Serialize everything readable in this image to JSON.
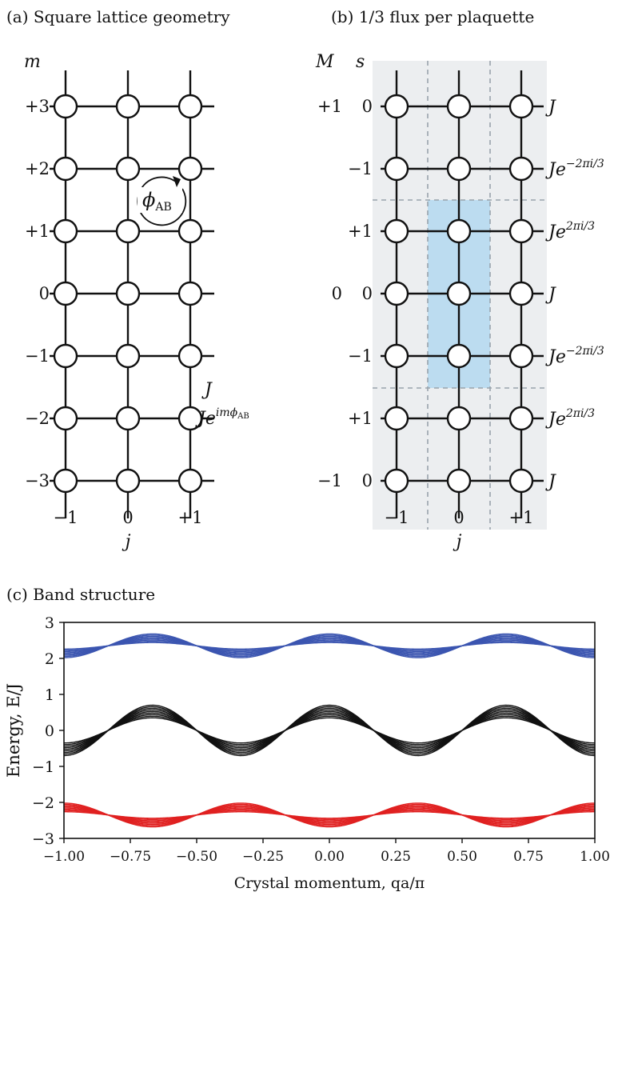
{
  "panel_a": {
    "title": "(a)  Square lattice geometry",
    "row_axis_label": "m",
    "col_axis_label": "j",
    "rows": [
      "+3",
      "+2",
      "+1",
      "0",
      "−1",
      "−2",
      "−3"
    ],
    "cols": [
      "−1",
      "0",
      "+1"
    ],
    "flux_label": "ϕ",
    "flux_sub": "AB",
    "hop_vertical_label": "J",
    "hop_horizontal_label": "Je",
    "hop_horizontal_exp": "imϕ",
    "hop_horizontal_exp_sub": "AB"
  },
  "panel_b": {
    "title": "(b)  1/3 flux per plaquette",
    "col_header_M": "M",
    "col_header_s": "s",
    "M_labels": [
      {
        "text": "+1",
        "row": 0
      },
      {
        "text": "0",
        "row": 3
      },
      {
        "text": "−1",
        "row": 6
      }
    ],
    "s_labels": [
      "0",
      "−1",
      "+1",
      "0",
      "−1",
      "+1",
      "0"
    ],
    "cols": [
      "−1",
      "0",
      "+1"
    ],
    "col_axis_label": "j",
    "hop_labels": [
      {
        "base": "J",
        "exp": ""
      },
      {
        "base": "Je",
        "exp": "−2πi/3"
      },
      {
        "base": "Je",
        "exp": "2πi/3"
      },
      {
        "base": "J",
        "exp": ""
      },
      {
        "base": "Je",
        "exp": "−2πi/3"
      },
      {
        "base": "Je",
        "exp": "2πi/3"
      },
      {
        "base": "J",
        "exp": ""
      }
    ],
    "unit_cell_color": "#bcdcf0",
    "background_color": "#eceef0"
  },
  "panel_c": {
    "title": "(c)  Band structure",
    "chart_data": {
      "type": "line",
      "xlabel": "Crystal momentum, qa/π",
      "ylabel": "Energy, E/J",
      "xlim": [
        -1.0,
        1.0
      ],
      "ylim": [
        -3,
        3
      ],
      "xticks": [
        "−1.00",
        "−0.75",
        "−0.50",
        "−0.25",
        "0.00",
        "0.25",
        "0.50",
        "0.75",
        "1.00"
      ],
      "yticks": [
        "3",
        "2",
        "1",
        "0",
        "−1",
        "−2",
        "−3"
      ],
      "grid": false,
      "bands": [
        {
          "color": "#3b55b0",
          "offset": 2.35,
          "amp_min": 0.09,
          "amp_max": 0.33,
          "phase_deg": 0,
          "count": 8
        },
        {
          "color": "#111111",
          "offset": 0.0,
          "amp_min": 0.35,
          "amp_max": 0.7,
          "phase_deg": 0,
          "count": 9
        },
        {
          "color": "#e02020",
          "offset": -2.35,
          "amp_min": 0.09,
          "amp_max": 0.33,
          "phase_deg": 180,
          "count": 8
        }
      ]
    }
  }
}
